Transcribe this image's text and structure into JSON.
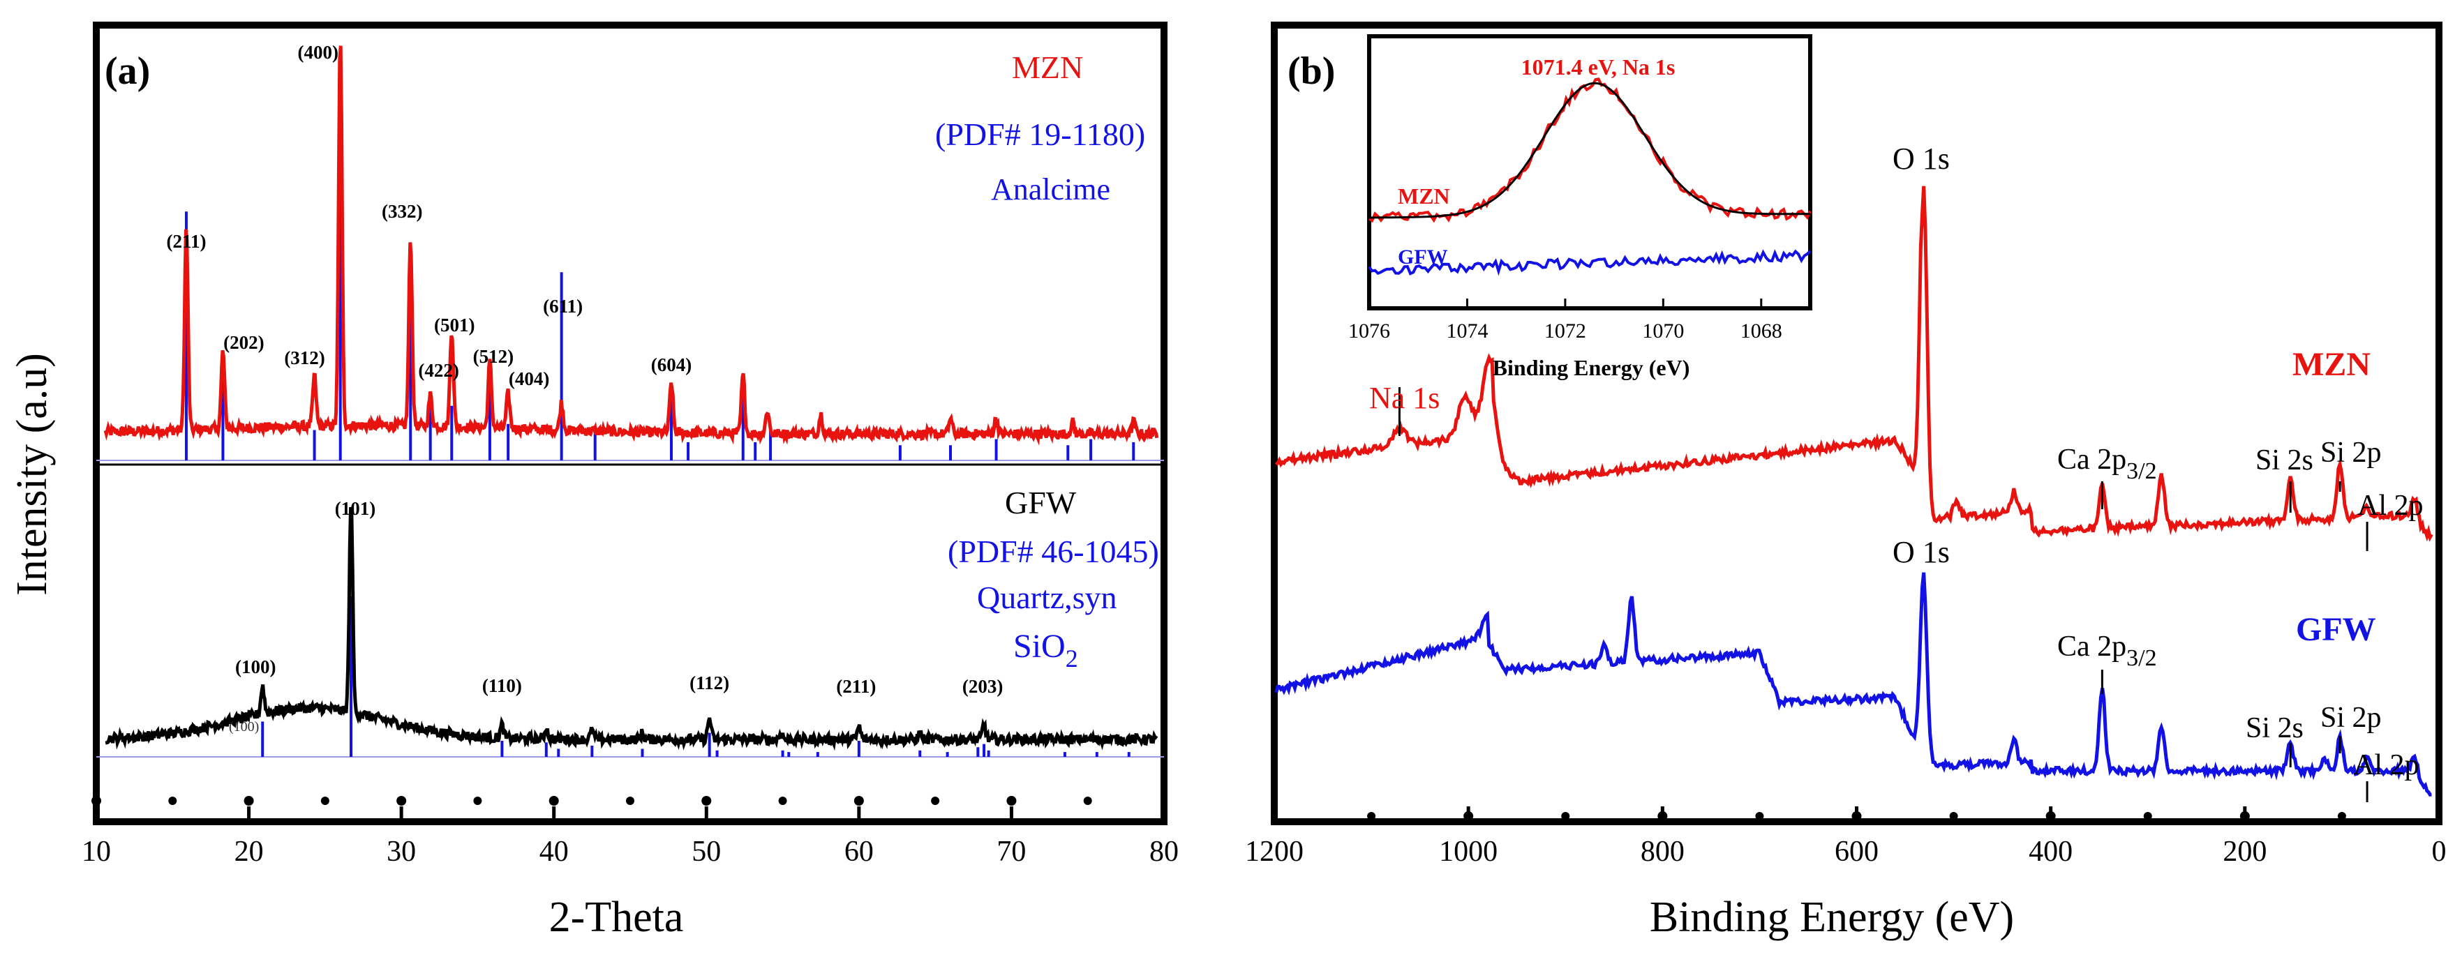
{
  "colors": {
    "red": "#e8120f",
    "blue": "#1212e6",
    "black": "#000000"
  },
  "chart_data": [
    {
      "type": "line",
      "panel_label": "(a)",
      "title": "",
      "xlabel": "2-Theta",
      "ylabel": "Intensity (a.u)",
      "xlim": [
        10,
        80
      ],
      "xticks": [
        "10",
        "20",
        "30",
        "40",
        "50",
        "60",
        "70",
        "80"
      ],
      "grid": false,
      "legend_labels": {
        "mzn": "MZN",
        "mzn_pdf": "(PDF# 19-1180)",
        "mzn_phase": "Analcime",
        "gfw": "GFW",
        "gfw_pdf": "(PDF# 46-1045)",
        "gfw_phase": "Quartz,syn",
        "gfw_formula_base": "SiO",
        "gfw_formula_sub": "2"
      },
      "series": [
        {
          "name": "MZN",
          "color": "#e8120f",
          "peaks": [
            {
              "x": 15.9,
              "h": 0.52,
              "hkl": "(211)"
            },
            {
              "x": 18.3,
              "h": 0.2,
              "hkl": "(202)"
            },
            {
              "x": 24.3,
              "h": 0.13,
              "hkl": "(312)"
            },
            {
              "x": 26.0,
              "h": 1.0,
              "hkl": "(400)"
            },
            {
              "x": 30.6,
              "h": 0.48,
              "hkl": "(332)"
            },
            {
              "x": 31.9,
              "h": 0.08,
              "hkl": "(422)"
            },
            {
              "x": 33.3,
              "h": 0.25,
              "hkl": "(501)"
            },
            {
              "x": 35.8,
              "h": 0.17,
              "hkl": "(512)"
            },
            {
              "x": 37.0,
              "h": 0.09,
              "hkl": "(404)"
            },
            {
              "x": 40.5,
              "h": 0.07,
              "hkl": "(611)"
            },
            {
              "x": 47.7,
              "h": 0.13,
              "hkl": "(604)"
            },
            {
              "x": 52.4,
              "h": 0.15,
              "hkl": ""
            },
            {
              "x": 54.0,
              "h": 0.06,
              "hkl": ""
            },
            {
              "x": 57.5,
              "h": 0.05,
              "hkl": ""
            },
            {
              "x": 66.0,
              "h": 0.04,
              "hkl": ""
            },
            {
              "x": 69.0,
              "h": 0.04,
              "hkl": ""
            },
            {
              "x": 74.0,
              "h": 0.03,
              "hkl": ""
            },
            {
              "x": 78.0,
              "h": 0.03,
              "hkl": ""
            }
          ]
        },
        {
          "name": "GFW",
          "color": "#000000",
          "peaks": [
            {
              "x": 20.9,
              "h": 0.13,
              "hkl": "(100)"
            },
            {
              "x": 26.7,
              "h": 1.0,
              "hkl": "(101)"
            },
            {
              "x": 36.6,
              "h": 0.06,
              "hkl": "(110)"
            },
            {
              "x": 39.5,
              "h": 0.05,
              "hkl": ""
            },
            {
              "x": 42.5,
              "h": 0.04,
              "hkl": ""
            },
            {
              "x": 45.8,
              "h": 0.03,
              "hkl": ""
            },
            {
              "x": 50.2,
              "h": 0.1,
              "hkl": "(112)"
            },
            {
              "x": 54.9,
              "h": 0.03,
              "hkl": ""
            },
            {
              "x": 60.0,
              "h": 0.06,
              "hkl": "(211)"
            },
            {
              "x": 64.0,
              "h": 0.03,
              "hkl": ""
            },
            {
              "x": 68.2,
              "h": 0.07,
              "hkl": "(203)"
            }
          ]
        }
      ],
      "reference_lines": {
        "mzn_PDF_19_1180": [
          {
            "x": 15.9,
            "h": 0.82
          },
          {
            "x": 18.3,
            "h": 0.33
          },
          {
            "x": 24.3,
            "h": 0.1
          },
          {
            "x": 26.0,
            "h": 1.0
          },
          {
            "x": 30.6,
            "h": 0.54
          },
          {
            "x": 31.9,
            "h": 0.18
          },
          {
            "x": 33.3,
            "h": 0.18
          },
          {
            "x": 35.8,
            "h": 0.3
          },
          {
            "x": 37.0,
            "h": 0.12
          },
          {
            "x": 40.5,
            "h": 0.62
          },
          {
            "x": 42.7,
            "h": 0.1
          },
          {
            "x": 47.7,
            "h": 0.24
          },
          {
            "x": 48.8,
            "h": 0.06
          },
          {
            "x": 52.4,
            "h": 0.24
          },
          {
            "x": 53.2,
            "h": 0.06
          },
          {
            "x": 54.2,
            "h": 0.1
          },
          {
            "x": 62.7,
            "h": 0.05
          },
          {
            "x": 66.0,
            "h": 0.05
          },
          {
            "x": 69.0,
            "h": 0.07
          },
          {
            "x": 73.7,
            "h": 0.05
          },
          {
            "x": 75.2,
            "h": 0.07
          },
          {
            "x": 78.0,
            "h": 0.06
          }
        ],
        "gfw_PDF_46_1045": [
          {
            "x": 20.9,
            "h": 0.22
          },
          {
            "x": 26.7,
            "h": 1.0
          },
          {
            "x": 36.6,
            "h": 0.1
          },
          {
            "x": 39.5,
            "h": 0.09
          },
          {
            "x": 40.3,
            "h": 0.05
          },
          {
            "x": 42.5,
            "h": 0.07
          },
          {
            "x": 45.8,
            "h": 0.05
          },
          {
            "x": 50.2,
            "h": 0.15
          },
          {
            "x": 50.7,
            "h": 0.04
          },
          {
            "x": 55.0,
            "h": 0.04
          },
          {
            "x": 55.4,
            "h": 0.03
          },
          {
            "x": 57.3,
            "h": 0.03
          },
          {
            "x": 60.0,
            "h": 0.1
          },
          {
            "x": 64.0,
            "h": 0.04
          },
          {
            "x": 65.8,
            "h": 0.03
          },
          {
            "x": 67.8,
            "h": 0.06
          },
          {
            "x": 68.2,
            "h": 0.08
          },
          {
            "x": 68.5,
            "h": 0.04
          },
          {
            "x": 73.5,
            "h": 0.03
          },
          {
            "x": 75.6,
            "h": 0.03
          },
          {
            "x": 77.7,
            "h": 0.03
          }
        ]
      },
      "extra_small_label": "(100)"
    },
    {
      "type": "line",
      "panel_label": "(b)",
      "title": "",
      "xlabel": "Binding Energy (eV)",
      "ylabel": "",
      "xlim": [
        1200,
        0
      ],
      "xticks": [
        "1200",
        "1000",
        "800",
        "600",
        "400",
        "200",
        "0"
      ],
      "grid": false,
      "series": [
        {
          "name": "MZN",
          "color": "#e8120f",
          "annotations": [
            "Na 1s",
            "O 1s",
            "Ca 2p",
            "Si 2s",
            "Si 2p",
            "Al 2p"
          ],
          "peaks": [
            {
              "x": 1071,
              "h": 0.05
            },
            {
              "x": 1003,
              "h": 0.12
            },
            {
              "x": 978,
              "h": 0.22
            },
            {
              "x": 531,
              "h": 0.95
            },
            {
              "x": 497,
              "h": 0.05
            },
            {
              "x": 438,
              "h": 0.06
            },
            {
              "x": 347,
              "h": 0.12
            },
            {
              "x": 286,
              "h": 0.15
            },
            {
              "x": 153,
              "h": 0.12
            },
            {
              "x": 102,
              "h": 0.16
            },
            {
              "x": 74,
              "h": 0.03
            },
            {
              "x": 25,
              "h": 0.06
            }
          ]
        },
        {
          "name": "GFW",
          "color": "#1212e6",
          "annotations": [
            "O 1s",
            "Ca 2p",
            "Si 2s",
            "Si 2p",
            "Al 2p"
          ],
          "peaks": [
            {
              "x": 978,
              "h": 0.1
            },
            {
              "x": 860,
              "h": 0.08
            },
            {
              "x": 832,
              "h": 0.28
            },
            {
              "x": 531,
              "h": 0.8
            },
            {
              "x": 438,
              "h": 0.1
            },
            {
              "x": 347,
              "h": 0.36
            },
            {
              "x": 286,
              "h": 0.2
            },
            {
              "x": 153,
              "h": 0.12
            },
            {
              "x": 118,
              "h": 0.05
            },
            {
              "x": 102,
              "h": 0.14
            },
            {
              "x": 74,
              "h": 0.05
            },
            {
              "x": 25,
              "h": 0.08
            }
          ]
        }
      ],
      "labels": {
        "mzn": "MZN",
        "gfw": "GFW",
        "na1s": "Na 1s",
        "o1s": "O 1s",
        "ca2p_base": "Ca 2p",
        "ca2p_sub": "3/2",
        "si2s": "Si 2s",
        "si2p": "Si 2p",
        "al2p": "Al 2p"
      }
    },
    {
      "type": "line",
      "role": "inset",
      "title": "1071.4 eV, Na 1s",
      "xlabel": "Binding Energy (eV)",
      "xlim": [
        1076,
        1067
      ],
      "xticks": [
        "1076",
        "1074",
        "1072",
        "1070",
        "1068"
      ],
      "series": [
        {
          "name": "MZN",
          "color": "#e8120f",
          "peak_center": 1071.4,
          "fwhm": 2.4
        },
        {
          "name": "fit",
          "color": "#000000",
          "peak_center": 1071.4,
          "fwhm": 2.4
        },
        {
          "name": "GFW",
          "color": "#1212e6"
        }
      ],
      "labels": {
        "mzn": "MZN",
        "gfw": "GFW"
      }
    }
  ]
}
